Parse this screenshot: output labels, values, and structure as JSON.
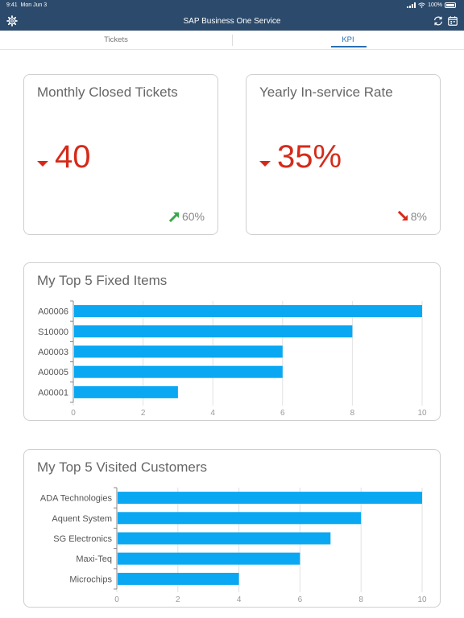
{
  "status_bar": {
    "time": "9:41",
    "date": "Mon Jun 3",
    "battery": "100%"
  },
  "header": {
    "title": "SAP Business One Service",
    "left_icon": "gear-icon",
    "right_icons": [
      "sync-icon",
      "calendar-icon"
    ]
  },
  "tabs": [
    {
      "label": "Tickets",
      "active": false
    },
    {
      "label": "KPI",
      "active": true
    }
  ],
  "kpis": [
    {
      "title": "Monthly Closed Tickets",
      "value": "40",
      "trend": "60%",
      "trend_direction": "up",
      "trend_color": "#3aa84a",
      "value_color": "#d52a1a"
    },
    {
      "title": "Yearly In-service Rate",
      "value": "35%",
      "trend": "8%",
      "trend_direction": "down",
      "trend_color": "#d52a1a",
      "value_color": "#d52a1a"
    }
  ],
  "chart_data": [
    {
      "type": "bar",
      "orientation": "horizontal",
      "title": "My Top 5 Fixed Items",
      "categories": [
        "A00006",
        "S10000",
        "A00003",
        "A00005",
        "A00001"
      ],
      "values": [
        10,
        8,
        6,
        6,
        3
      ],
      "xlim": [
        0,
        10
      ],
      "xticks": [
        "0",
        "2",
        "4",
        "6",
        "8",
        "10"
      ],
      "grid": true,
      "bar_color": "#0aa8f2"
    },
    {
      "type": "bar",
      "orientation": "horizontal",
      "title": "My Top 5 Visited Customers",
      "categories": [
        "ADA Technologies",
        "Aquent System",
        "SG Electronics",
        "Maxi-Teq",
        "Microchips"
      ],
      "values": [
        10,
        8,
        7,
        6,
        4
      ],
      "xlim": [
        0,
        10
      ],
      "xticks": [
        "0",
        "2",
        "4",
        "6",
        "8",
        "10"
      ],
      "grid": true,
      "bar_color": "#0aa8f2"
    }
  ]
}
